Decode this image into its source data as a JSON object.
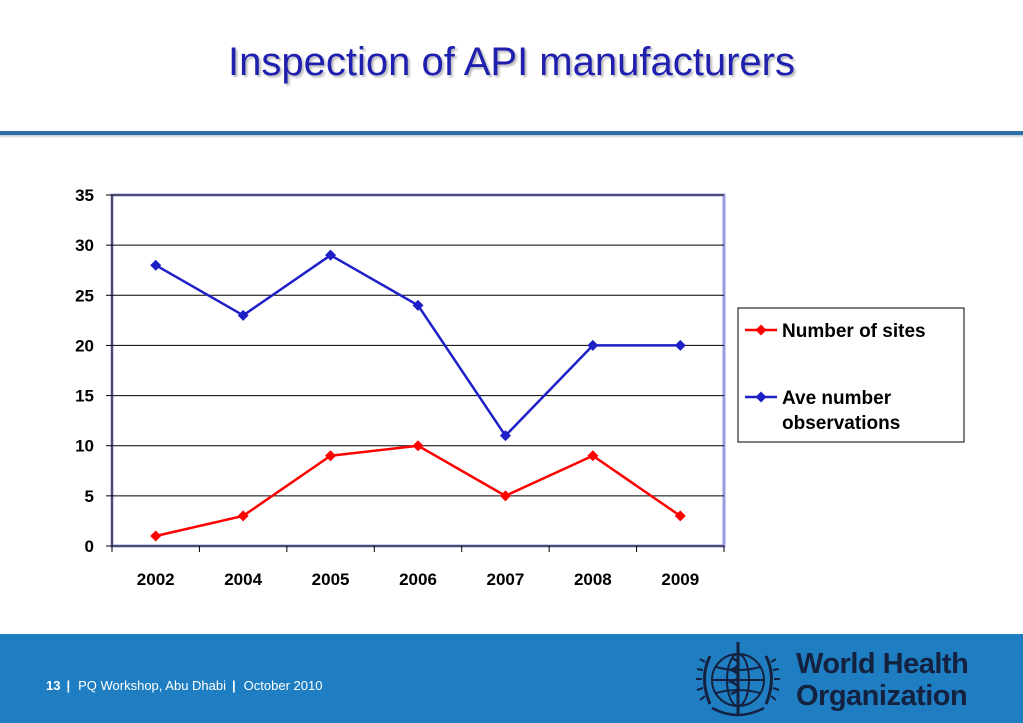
{
  "slide": {
    "title": "Inspection of API manufacturers"
  },
  "footer": {
    "page_number": "13",
    "separator": "|",
    "event": "PQ Workshop, Abu Dhabi",
    "date": "October 2010",
    "org_name_line1": "World Health",
    "org_name_line2": "Organization",
    "background_color": "#1f7ec1"
  },
  "chart_data": {
    "type": "line",
    "categories": [
      "2002",
      "2004",
      "2005",
      "2006",
      "2007",
      "2008",
      "2009"
    ],
    "series": [
      {
        "name": "Number of sites",
        "color": "#ff0000",
        "values": [
          1,
          3,
          9,
          10,
          5,
          9,
          3
        ]
      },
      {
        "name": "Ave number observations",
        "color": "#1f1fc8",
        "values": [
          28,
          23,
          29,
          24,
          11,
          20,
          20
        ]
      }
    ],
    "ylim": [
      0,
      35
    ],
    "yticks": [
      "0",
      "5",
      "10",
      "15",
      "20",
      "25",
      "30",
      "35"
    ],
    "grid": true,
    "legend_position": "right",
    "marker": "diamond"
  }
}
